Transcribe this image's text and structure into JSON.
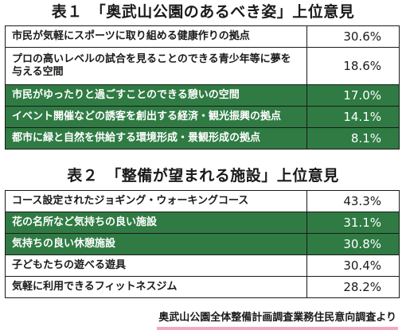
{
  "table1": {
    "title": "表１　「奥武山公園のあるべき姿」上位意見",
    "rows": [
      {
        "label": "市民が気軽にスポーツに取り組める健康作りの拠点",
        "value": "30.6%"
      },
      {
        "label": "プロの高いレベルの試合を見ることのできる青少年等に夢を与える空間",
        "value": "18.6%"
      },
      {
        "label": "市民がゆったりと過ごすことのできる憩いの空間",
        "value": "17.0%"
      },
      {
        "label": "イベント開催などの誘客を創出する経済・観光振興の拠点",
        "value": "14.1%"
      },
      {
        "label": "都市に緑と自然を供給する環境形成・景観形成の拠点",
        "value": "8.1%"
      }
    ]
  },
  "table2": {
    "title": "表２　「整備が望まれる施設」上位意見",
    "rows": [
      {
        "label": "コース設定されたジョギング・ウォーキングコース",
        "value": "43.3%"
      },
      {
        "label": "花の名所など気持ちの良い施設",
        "value": "31.1%"
      },
      {
        "label": "気持ちの良い休憩施設",
        "value": "30.8%"
      },
      {
        "label": "子どもたちの遊べる遊具",
        "value": "30.4%"
      },
      {
        "label": "気軽に利用できるフィットネスジム",
        "value": "28.2%"
      }
    ]
  },
  "source": "奥武山公園全体整備計画調査業務住民意向調査より",
  "colors": {
    "highlight_row": "#2f7b43",
    "source_underline": "#f2a9c6"
  }
}
